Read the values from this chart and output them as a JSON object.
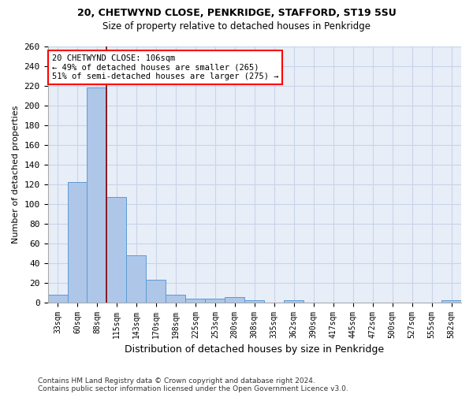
{
  "title1": "20, CHETWYND CLOSE, PENKRIDGE, STAFFORD, ST19 5SU",
  "title2": "Size of property relative to detached houses in Penkridge",
  "xlabel": "Distribution of detached houses by size in Penkridge",
  "ylabel": "Number of detached properties",
  "bin_labels": [
    "33sqm",
    "60sqm",
    "88sqm",
    "115sqm",
    "143sqm",
    "170sqm",
    "198sqm",
    "225sqm",
    "253sqm",
    "280sqm",
    "308sqm",
    "335sqm",
    "362sqm",
    "390sqm",
    "417sqm",
    "445sqm",
    "472sqm",
    "500sqm",
    "527sqm",
    "555sqm",
    "582sqm"
  ],
  "bar_values": [
    8,
    122,
    218,
    107,
    48,
    23,
    8,
    4,
    4,
    5,
    2,
    0,
    2,
    0,
    0,
    0,
    0,
    0,
    0,
    0,
    2
  ],
  "bar_color": "#aec6e8",
  "bar_edge_color": "#5b9bd5",
  "bg_color": "#e8eef8",
  "grid_color": "#c8d4e8",
  "vline_color": "#8b0000",
  "annotation_text": "20 CHETWYND CLOSE: 106sqm\n← 49% of detached houses are smaller (265)\n51% of semi-detached houses are larger (275) →",
  "annotation_box_color": "white",
  "annotation_box_edge": "red",
  "ylim": [
    0,
    260
  ],
  "yticks": [
    0,
    20,
    40,
    60,
    80,
    100,
    120,
    140,
    160,
    180,
    200,
    220,
    240,
    260
  ],
  "footnote1": "Contains HM Land Registry data © Crown copyright and database right 2024.",
  "footnote2": "Contains public sector information licensed under the Open Government Licence v3.0.",
  "vline_bin_index": 2.5
}
